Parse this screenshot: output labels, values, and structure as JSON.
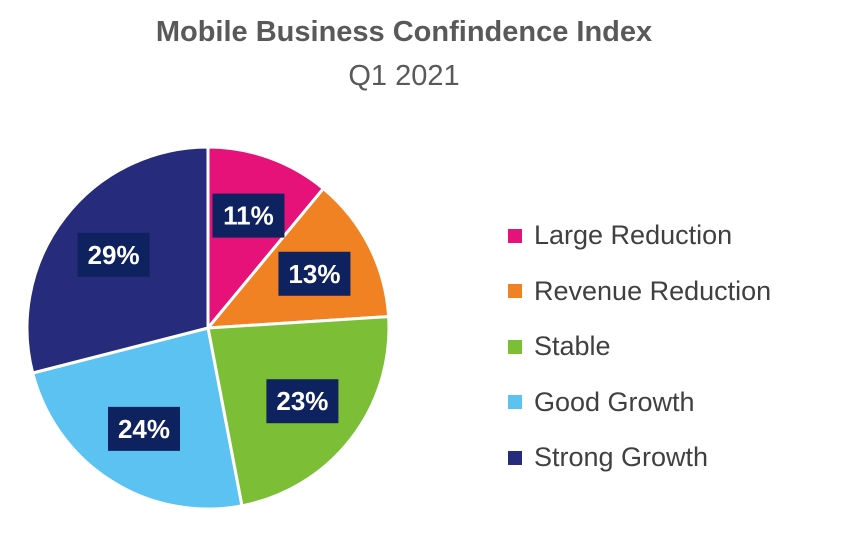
{
  "chart_data": {
    "type": "pie",
    "title": "Mobile Business Confindence Index",
    "subtitle": "Q1 2021",
    "categories": [
      "Large Reduction",
      "Revenue Reduction",
      "Stable",
      "Good Growth",
      "Strong Growth"
    ],
    "values": [
      11,
      13,
      23,
      24,
      29
    ],
    "data_labels": [
      "11%",
      "13%",
      "23%",
      "24%",
      "29%"
    ],
    "colors": [
      "#E6127A",
      "#F08223",
      "#7CBE35",
      "#5BC2F1",
      "#262B7B"
    ],
    "label_box_color": "#0F2260",
    "legend_position": "right"
  }
}
